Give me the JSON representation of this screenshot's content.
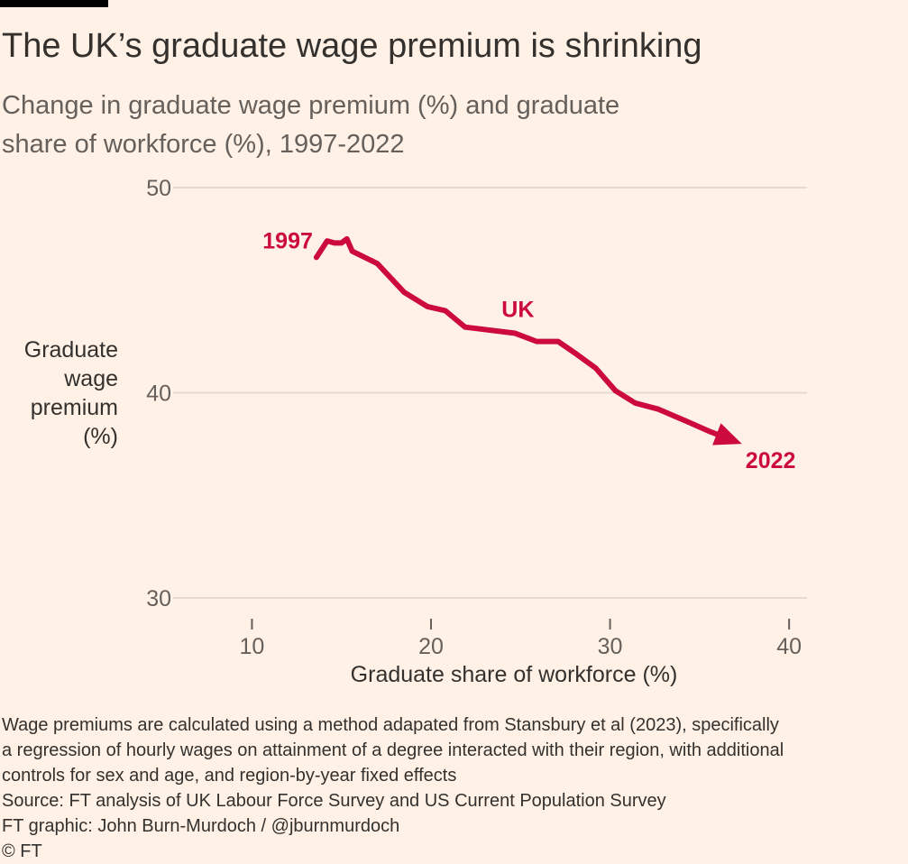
{
  "title": "The UK’s graduate wage premium is shrinking",
  "subtitle": "Change in graduate wage premium (%) and graduate share of workforce (%), 1997-2022",
  "chart_data": {
    "type": "line",
    "xlabel": "Graduate share of workforce (%)",
    "ylabel_lines": [
      "Graduate",
      "wage",
      "premium",
      "(%)"
    ],
    "xlim": [
      6,
      41
    ],
    "ylim": [
      30,
      50
    ],
    "x_ticks": [
      10,
      20,
      30,
      40
    ],
    "y_ticks": [
      30,
      40,
      50
    ],
    "grid": "horizontal",
    "series": [
      {
        "name": "UK",
        "color": "#cc0a3c",
        "x": [
          13.6,
          13.9,
          14.2,
          14.6,
          15.0,
          15.3,
          15.6,
          17.0,
          18.5,
          19.8,
          20.8,
          21.9,
          24.7,
          25.9,
          27.1,
          28.1,
          29.2,
          30.3,
          31.4,
          32.7,
          34.3,
          35.6,
          36.8
        ],
        "y": [
          46.6,
          47.0,
          47.4,
          47.3,
          47.3,
          47.5,
          46.9,
          46.3,
          44.9,
          44.2,
          44.0,
          43.2,
          42.9,
          42.5,
          42.5,
          41.9,
          41.2,
          40.1,
          39.5,
          39.2,
          38.6,
          38.1,
          37.7
        ]
      }
    ],
    "annotations": [
      {
        "text": "1997",
        "role": "start"
      },
      {
        "text": "UK",
        "role": "series"
      },
      {
        "text": "2022",
        "role": "end"
      }
    ]
  },
  "footer": {
    "note_lines": [
      "Wage premiums are calculated using a method adapated from Stansbury et al (2023), specifically",
      "a regression of hourly wages on attainment of a degree interacted with their region, with additional",
      "controls for sex and age, and region-by-year fixed effects"
    ],
    "source": "Source: FT analysis of UK Labour Force Survey and US Current Population Survey",
    "credit": "FT graphic: John Burn-Murdoch / @jburnmurdoch",
    "copyright": "© FT"
  }
}
